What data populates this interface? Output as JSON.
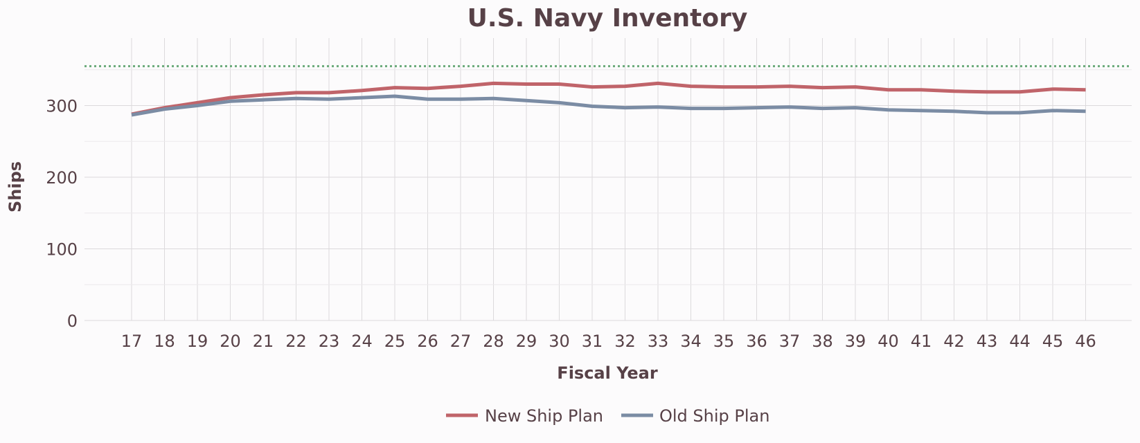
{
  "chart_data": {
    "type": "line",
    "title": "U.S. Navy Inventory",
    "xlabel": "Fiscal Year",
    "ylabel": "Ships",
    "categories": [
      "17",
      "18",
      "19",
      "20",
      "21",
      "22",
      "23",
      "24",
      "25",
      "26",
      "27",
      "28",
      "29",
      "30",
      "31",
      "32",
      "33",
      "34",
      "35",
      "36",
      "37",
      "38",
      "39",
      "40",
      "41",
      "42",
      "43",
      "44",
      "45",
      "46"
    ],
    "ylim": [
      0,
      380
    ],
    "yticks": [
      0,
      100,
      200,
      300
    ],
    "reference_line": {
      "value": 355,
      "style": "dotted",
      "color": "#6aaa7a"
    },
    "series": [
      {
        "name": "New Ship Plan",
        "color": "#c0646a",
        "values": [
          288,
          297,
          304,
          311,
          315,
          318,
          318,
          321,
          325,
          324,
          327,
          331,
          330,
          330,
          326,
          327,
          331,
          327,
          326,
          326,
          327,
          325,
          326,
          322,
          322,
          320,
          319,
          319,
          323,
          322
        ]
      },
      {
        "name": "Old Ship Plan",
        "color": "#7b8ca4",
        "values": [
          287,
          295,
          300,
          306,
          308,
          310,
          309,
          311,
          313,
          309,
          309,
          310,
          307,
          304,
          299,
          297,
          298,
          296,
          296,
          297,
          298,
          296,
          297,
          294,
          293,
          292,
          290,
          290,
          293,
          292
        ]
      }
    ],
    "grid": true,
    "legend_position": "bottom"
  }
}
